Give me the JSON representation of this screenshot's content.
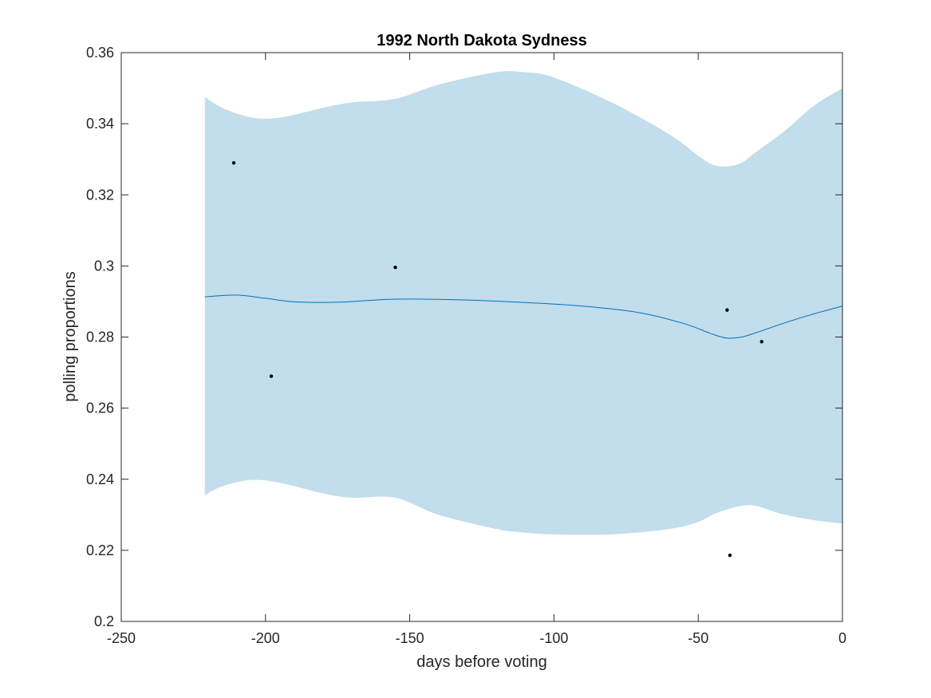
{
  "chart_data": {
    "type": "line",
    "title": "1992 North Dakota Sydness",
    "xlabel": "days before voting",
    "ylabel": "polling proportions",
    "xlim": [
      -250,
      0
    ],
    "ylim": [
      0.2,
      0.36
    ],
    "x_ticks": [
      -250,
      -200,
      -150,
      -100,
      -50,
      0
    ],
    "x_tick_labels": [
      "-250",
      "-200",
      "-150",
      "-100",
      "-50",
      "0"
    ],
    "y_ticks": [
      0.2,
      0.22,
      0.24,
      0.26,
      0.28,
      0.3,
      0.32,
      0.34,
      0.36
    ],
    "y_tick_labels": [
      "0.2",
      "0.22",
      "0.24",
      "0.26",
      "0.28",
      "0.3",
      "0.32",
      "0.34",
      "0.36"
    ],
    "grid": false,
    "colors": {
      "band": "#c2ddeb",
      "line": "#0072bd",
      "points": "#000000",
      "axes": "#262626"
    },
    "band": {
      "x": [
        -221,
        -215,
        -205,
        -195,
        -180,
        -170,
        -155,
        -140,
        -120,
        -110,
        -100,
        -80,
        -60,
        -50,
        -45,
        -40,
        -35,
        -30,
        -20,
        -10,
        0
      ],
      "upper": [
        0.3475,
        0.3445,
        0.3418,
        0.3417,
        0.3445,
        0.346,
        0.347,
        0.351,
        0.3545,
        0.3545,
        0.353,
        0.346,
        0.337,
        0.331,
        0.3285,
        0.328,
        0.329,
        0.332,
        0.338,
        0.345,
        0.35
      ],
      "lower": [
        0.2355,
        0.238,
        0.2398,
        0.239,
        0.236,
        0.2348,
        0.2348,
        0.23,
        0.226,
        0.225,
        0.2245,
        0.2245,
        0.226,
        0.228,
        0.23,
        0.2315,
        0.2325,
        0.2325,
        0.23,
        0.2285,
        0.2275
      ]
    },
    "series": [
      {
        "x": [
          -221,
          -210,
          -200,
          -190,
          -175,
          -160,
          -150,
          -130,
          -110,
          -90,
          -70,
          -55,
          -45,
          -40,
          -35,
          -30,
          -20,
          -10,
          0
        ],
        "values": [
          0.2913,
          0.2918,
          0.2909,
          0.2899,
          0.2898,
          0.2905,
          0.2907,
          0.2904,
          0.2897,
          0.2887,
          0.2868,
          0.2838,
          0.2808,
          0.2797,
          0.28,
          0.2812,
          0.284,
          0.2865,
          0.2887
        ]
      }
    ],
    "points": {
      "x": [
        -211,
        -198,
        -155,
        -40,
        -39,
        -28
      ],
      "y": [
        0.329,
        0.269,
        0.2996,
        0.2876,
        0.2186,
        0.2787
      ]
    }
  }
}
